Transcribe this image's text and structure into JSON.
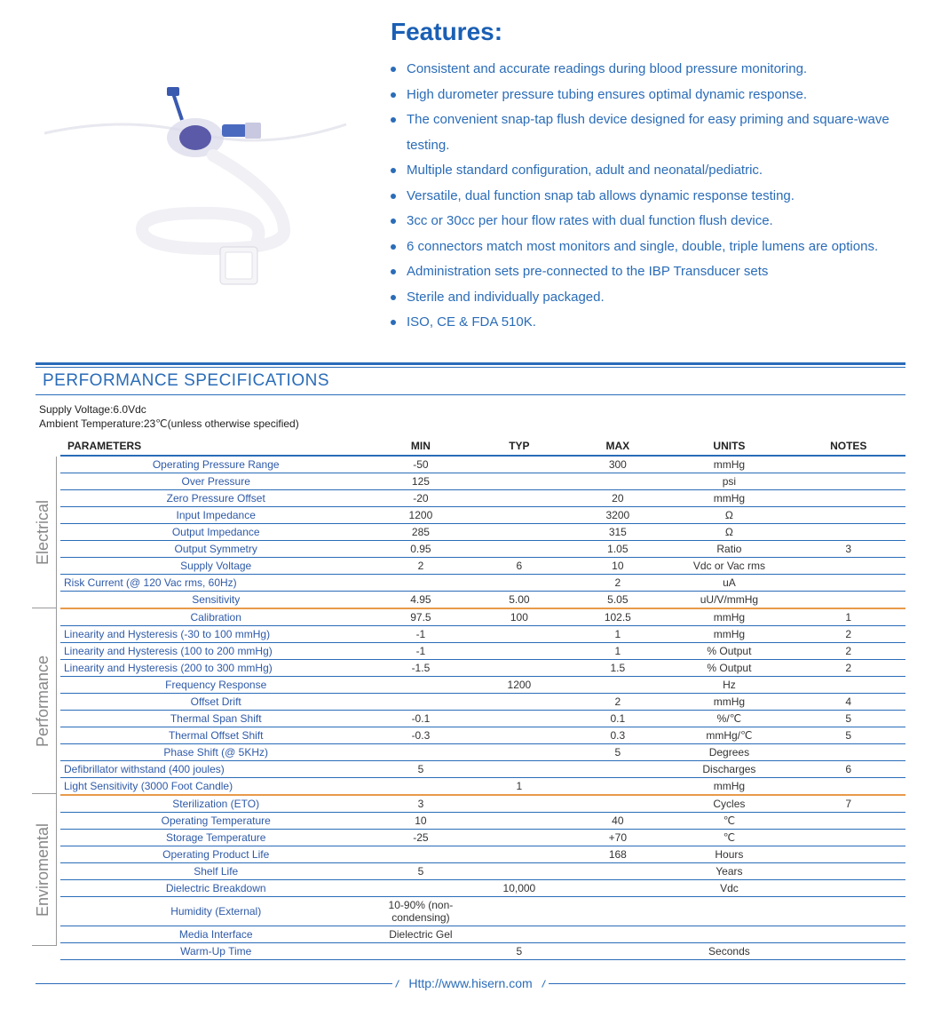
{
  "colors": {
    "primary": "#2a6cb8",
    "title": "#1a5fb4",
    "divider": "#e89a4a",
    "text": "#333333",
    "cat_label": "#888888"
  },
  "features": {
    "title": "Features:",
    "items": [
      "Consistent and accurate readings during blood pressure monitoring.",
      "High durometer pressure tubing ensures optimal dynamic response.",
      "The convenient snap-tap flush device designed for easy priming and square-wave testing.",
      "Multiple standard configuration, adult and neonatal/pediatric.",
      "Versatile, dual function snap tab allows dynamic response testing.",
      "3cc or 30cc per hour flow rates with dual function flush device.",
      "6 connectors match most monitors and single, double, triple lumens are options.",
      "Administration sets pre-connected to the IBP Transducer sets",
      "Sterile and individually packaged.",
      "ISO, CE & FDA 510K."
    ]
  },
  "spec": {
    "title": "PERFORMANCE SPECIFICATIONS",
    "meta1": "Supply Voltage:6.0Vdc",
    "meta2": "Ambient Temperature:23℃(unless otherwise specified)",
    "headers": {
      "param": "PARAMETERS",
      "min": "MIN",
      "typ": "TYP",
      "max": "MAX",
      "units": "UNITS",
      "notes": "NOTES"
    },
    "categories": [
      {
        "label": "Electrical",
        "rows": [
          {
            "param": "Operating Pressure Range",
            "min": "-50",
            "typ": "",
            "max": "300",
            "units": "mmHg",
            "notes": ""
          },
          {
            "param": "Over  Pressure",
            "min": "125",
            "typ": "",
            "max": "",
            "units": "psi",
            "notes": ""
          },
          {
            "param": "Zero Pressure Offset",
            "min": "-20",
            "typ": "",
            "max": "20",
            "units": "mmHg",
            "notes": ""
          },
          {
            "param": "Input Impedance",
            "min": "1200",
            "typ": "",
            "max": "3200",
            "units": "Ω",
            "notes": ""
          },
          {
            "param": "Output Impedance",
            "min": "285",
            "typ": "",
            "max": "315",
            "units": "Ω",
            "notes": ""
          },
          {
            "param": "Output Symmetry",
            "min": "0.95",
            "typ": "",
            "max": "1.05",
            "units": "Ratio",
            "notes": "3"
          },
          {
            "param": "Supply Voltage",
            "min": "2",
            "typ": "6",
            "max": "10",
            "units": "Vdc or Vac rms",
            "notes": ""
          },
          {
            "param": "Risk Current (@ 120 Vac rms, 60Hz)",
            "min": "",
            "typ": "",
            "max": "2",
            "units": "uA",
            "notes": "",
            "left": true
          },
          {
            "param": "Sensitivity",
            "min": "4.95",
            "typ": "5.00",
            "max": "5.05",
            "units": "uU/V/mmHg",
            "notes": ""
          }
        ]
      },
      {
        "label": "Performance",
        "rows": [
          {
            "param": "Calibration",
            "min": "97.5",
            "typ": "100",
            "max": "102.5",
            "units": "mmHg",
            "notes": "1"
          },
          {
            "param": "Linearity and Hysteresis (-30 to 100 mmHg)",
            "min": "-1",
            "typ": "",
            "max": "1",
            "units": "mmHg",
            "notes": "2",
            "left": true
          },
          {
            "param": "Linearity and Hysteresis (100 to 200 mmHg)",
            "min": "-1",
            "typ": "",
            "max": "1",
            "units": "% Output",
            "notes": "2",
            "left": true
          },
          {
            "param": "Linearity and Hysteresis (200 to 300 mmHg)",
            "min": "-1.5",
            "typ": "",
            "max": "1.5",
            "units": "% Output",
            "notes": "2",
            "left": true
          },
          {
            "param": "Frequency Response",
            "min": "",
            "typ": "1200",
            "max": "",
            "units": "Hz",
            "notes": ""
          },
          {
            "param": "Offset Drift",
            "min": "",
            "typ": "",
            "max": "2",
            "units": "mmHg",
            "notes": "4"
          },
          {
            "param": "Thermal Span Shift",
            "min": "-0.1",
            "typ": "",
            "max": "0.1",
            "units": "%/℃",
            "notes": "5"
          },
          {
            "param": "Thermal Offset Shift",
            "min": "-0.3",
            "typ": "",
            "max": "0.3",
            "units": "mmHg/℃",
            "notes": "5"
          },
          {
            "param": "Phase Shift (@ 5KHz)",
            "min": "",
            "typ": "",
            "max": "5",
            "units": "Degrees",
            "notes": ""
          },
          {
            "param": "Defibrillator withstand (400 joules)",
            "min": "5",
            "typ": "",
            "max": "",
            "units": "Discharges",
            "notes": "6",
            "left": true
          },
          {
            "param": "Light Sensitivity (3000 Foot Candle)",
            "min": "",
            "typ": "1",
            "max": "",
            "units": "mmHg",
            "notes": "",
            "left": true
          }
        ]
      },
      {
        "label": "Enviromental",
        "rows": [
          {
            "param": "Sterilization (ETO)",
            "min": "3",
            "typ": "",
            "max": "",
            "units": "Cycles",
            "notes": "7"
          },
          {
            "param": "Operating Temperature",
            "min": "10",
            "typ": "",
            "max": "40",
            "units": "℃",
            "notes": ""
          },
          {
            "param": "Storage Temperature",
            "min": "-25",
            "typ": "",
            "max": "+70",
            "units": "℃",
            "notes": ""
          },
          {
            "param": "Operating Product Life",
            "min": "",
            "typ": "",
            "max": "168",
            "units": "Hours",
            "notes": ""
          },
          {
            "param": "Shelf Life",
            "min": "5",
            "typ": "",
            "max": "",
            "units": "Years",
            "notes": ""
          },
          {
            "param": "Dielectric Breakdown",
            "min": "",
            "typ": "10,000",
            "max": "",
            "units": "Vdc",
            "notes": ""
          },
          {
            "param": "Humidity (External)",
            "min": "10-90% (non-condensing)",
            "typ": "",
            "max": "",
            "units": "",
            "notes": ""
          },
          {
            "param": "Media Interface",
            "min": "Dielectric Gel",
            "typ": "",
            "max": "",
            "units": "",
            "notes": ""
          },
          {
            "param": "Warm-Up Time",
            "min": "",
            "typ": "5",
            "max": "",
            "units": "Seconds",
            "notes": ""
          }
        ]
      }
    ]
  },
  "footer": {
    "url": "Http://www.hisern.com"
  }
}
